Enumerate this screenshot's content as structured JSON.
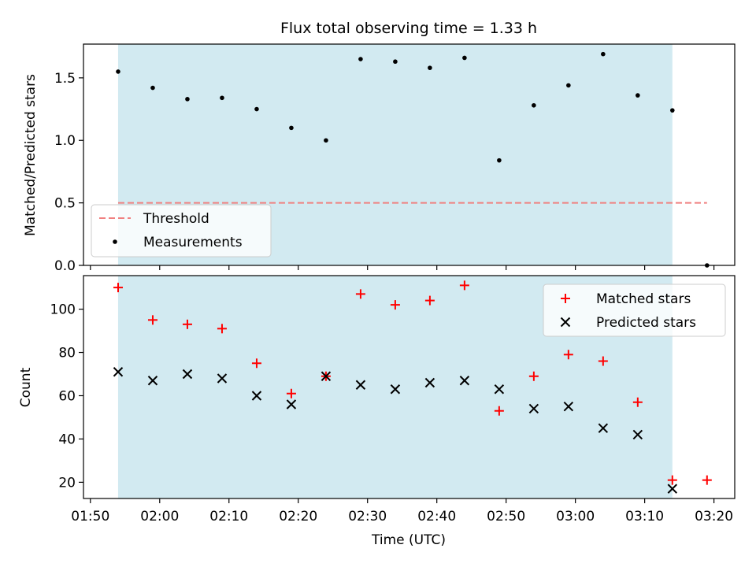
{
  "figure": {
    "title": "Flux total observing time = 1.33 h",
    "xlabel": "Time (UTC)"
  },
  "colors": {
    "span": "#add8e6",
    "threshold": "#f08080",
    "matched": "#ff0000",
    "predicted": "#000000",
    "measurement": "#000000"
  },
  "chart_data": [
    {
      "type": "scatter",
      "panel": "top",
      "title": "Flux total observing time = 1.33 h",
      "xlabel": "",
      "ylabel": "Matched/Predicted stars",
      "x_ticks": [
        "01:50",
        "02:00",
        "02:10",
        "02:20",
        "02:30",
        "02:40",
        "02:50",
        "03:00",
        "03:10",
        "03:20"
      ],
      "x_ticklabels_visible": false,
      "xlim": [
        "01:49",
        "03:23"
      ],
      "ylim": [
        0,
        1.77
      ],
      "y_ticks": [
        0.0,
        0.5,
        1.0,
        1.5
      ],
      "y_ticklabels": [
        "0.0",
        "0.5",
        "1.0",
        "1.5"
      ],
      "shaded_span": [
        "01:54",
        "03:14"
      ],
      "legend_position": "lower-left",
      "legend": [
        "Threshold",
        "Measurements"
      ],
      "series": [
        {
          "name": "Threshold",
          "kind": "dashed-line",
          "x": [
            "01:54",
            "03:19"
          ],
          "y": [
            0.5,
            0.5
          ]
        },
        {
          "name": "Measurements",
          "kind": "dot",
          "x": [
            "01:54",
            "01:59",
            "02:04",
            "02:09",
            "02:14",
            "02:19",
            "02:24",
            "02:29",
            "02:34",
            "02:39",
            "02:44",
            "02:49",
            "02:54",
            "02:59",
            "03:04",
            "03:09",
            "03:14",
            "03:19"
          ],
          "y": [
            1.55,
            1.42,
            1.33,
            1.34,
            1.25,
            1.1,
            1.0,
            1.65,
            1.63,
            1.58,
            1.66,
            0.84,
            1.28,
            1.44,
            1.69,
            1.36,
            1.24,
            0.0
          ]
        }
      ]
    },
    {
      "type": "scatter",
      "panel": "bottom",
      "xlabel": "Time (UTC)",
      "ylabel": "Count",
      "x_ticks": [
        "01:50",
        "02:00",
        "02:10",
        "02:20",
        "02:30",
        "02:40",
        "02:50",
        "03:00",
        "03:10",
        "03:20"
      ],
      "xlim": [
        "01:49",
        "03:23"
      ],
      "ylim": [
        12.5,
        115.5
      ],
      "y_ticks": [
        20,
        40,
        60,
        80,
        100
      ],
      "shaded_span": [
        "01:54",
        "03:14"
      ],
      "legend_position": "upper-right",
      "legend": [
        "Matched stars",
        "Predicted stars"
      ],
      "series": [
        {
          "name": "Matched stars",
          "marker": "+",
          "x": [
            "01:54",
            "01:59",
            "02:04",
            "02:09",
            "02:14",
            "02:19",
            "02:24",
            "02:29",
            "02:34",
            "02:39",
            "02:44",
            "02:49",
            "02:54",
            "02:59",
            "03:04",
            "03:09",
            "03:14",
            "03:19"
          ],
          "y": [
            110,
            95,
            93,
            91,
            75,
            61,
            69,
            107,
            102,
            104,
            111,
            53,
            69,
            79,
            76,
            57,
            21,
            21
          ]
        },
        {
          "name": "Predicted stars",
          "marker": "x",
          "x": [
            "01:54",
            "01:59",
            "02:04",
            "02:09",
            "02:14",
            "02:19",
            "02:24",
            "02:29",
            "02:34",
            "02:39",
            "02:44",
            "02:49",
            "02:54",
            "02:59",
            "03:04",
            "03:09",
            "03:14"
          ],
          "y": [
            71,
            67,
            70,
            68,
            60,
            56,
            69,
            65,
            63,
            66,
            67,
            63,
            54,
            55,
            45,
            42,
            17
          ]
        }
      ]
    }
  ]
}
